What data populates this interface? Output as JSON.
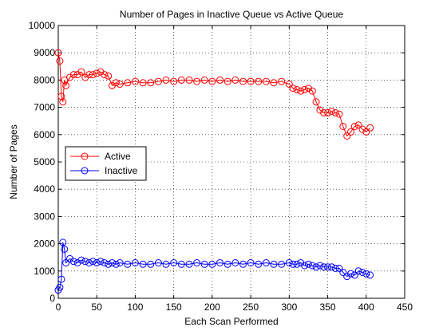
{
  "chart_data": {
    "type": "line",
    "title": "Number of Pages in Inactive Queue vs Active Queue",
    "xlabel": "Each Scan Performed",
    "ylabel": "Number of Pages",
    "xlim": [
      0,
      450
    ],
    "ylim": [
      0,
      10000
    ],
    "xticks": [
      0,
      50,
      100,
      150,
      200,
      250,
      300,
      350,
      400,
      450
    ],
    "yticks": [
      0,
      1000,
      2000,
      3000,
      4000,
      5000,
      6000,
      7000,
      8000,
      9000,
      10000
    ],
    "grid": true,
    "legend_position": "left, middle",
    "marker": "circle",
    "series": [
      {
        "name": "Active",
        "color": "#ff0000",
        "x": [
          0,
          2,
          4,
          6,
          8,
          10,
          15,
          20,
          25,
          30,
          35,
          40,
          45,
          50,
          55,
          60,
          65,
          70,
          75,
          80,
          90,
          100,
          110,
          120,
          130,
          140,
          150,
          160,
          170,
          180,
          190,
          200,
          210,
          220,
          230,
          240,
          250,
          260,
          270,
          280,
          290,
          300,
          305,
          310,
          315,
          320,
          325,
          330,
          335,
          340,
          345,
          350,
          355,
          360,
          365,
          370,
          375,
          380,
          385,
          390,
          395,
          400,
          405
        ],
        "values": [
          9000,
          8700,
          7400,
          7200,
          8000,
          7800,
          8100,
          8200,
          8200,
          8300,
          8100,
          8200,
          8200,
          8250,
          8300,
          8200,
          8150,
          7800,
          7900,
          7850,
          7900,
          7950,
          7900,
          7900,
          7950,
          8000,
          7950,
          8000,
          8000,
          7950,
          8000,
          7950,
          8000,
          7950,
          8000,
          7950,
          7950,
          7950,
          7950,
          7900,
          7950,
          7850,
          7700,
          7650,
          7600,
          7650,
          7700,
          7600,
          7200,
          6900,
          6800,
          6800,
          6850,
          6800,
          6750,
          6300,
          5950,
          6100,
          6300,
          6350,
          6200,
          6100,
          6250
        ]
      },
      {
        "name": "Inactive",
        "color": "#0000ff",
        "x": [
          0,
          2,
          4,
          6,
          8,
          10,
          15,
          20,
          25,
          30,
          35,
          40,
          45,
          50,
          55,
          60,
          65,
          70,
          75,
          80,
          90,
          100,
          110,
          120,
          130,
          140,
          150,
          160,
          170,
          180,
          190,
          200,
          210,
          220,
          230,
          240,
          250,
          260,
          270,
          280,
          290,
          300,
          305,
          310,
          315,
          320,
          325,
          330,
          335,
          340,
          345,
          350,
          355,
          360,
          365,
          370,
          375,
          380,
          385,
          390,
          395,
          400,
          405
        ],
        "values": [
          300,
          400,
          700,
          2050,
          1800,
          1300,
          1450,
          1350,
          1300,
          1400,
          1350,
          1300,
          1350,
          1300,
          1350,
          1300,
          1250,
          1300,
          1250,
          1300,
          1250,
          1300,
          1250,
          1250,
          1300,
          1250,
          1300,
          1250,
          1250,
          1300,
          1250,
          1250,
          1300,
          1250,
          1300,
          1250,
          1300,
          1250,
          1300,
          1250,
          1250,
          1300,
          1250,
          1250,
          1300,
          1200,
          1250,
          1200,
          1150,
          1200,
          1150,
          1150,
          1150,
          1100,
          1100,
          950,
          800,
          900,
          850,
          1000,
          950,
          900,
          850
        ]
      }
    ]
  }
}
